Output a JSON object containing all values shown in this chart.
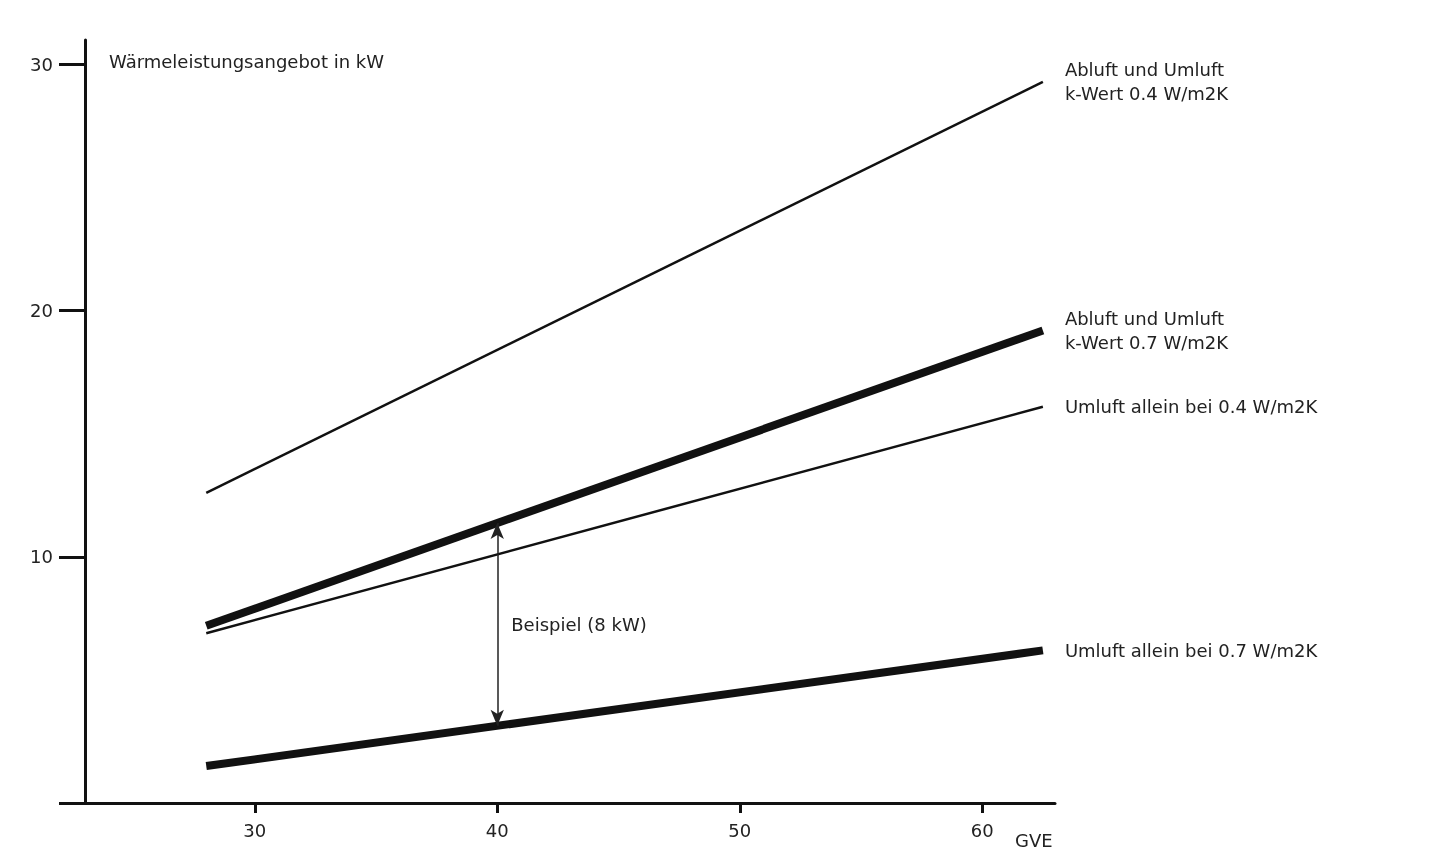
{
  "chart_data": {
    "type": "line",
    "ylabel": "Wärmeleistungsangebot in kW",
    "xlabel": "GVE",
    "x": [
      28,
      62.5
    ],
    "series": [
      {
        "name": "Abluft und Umluft\nk-Wert 0.4 W/m2K",
        "color": "#111111",
        "values": [
          12.6,
          29.3
        ]
      },
      {
        "name": "Abluft und Umluft\nk-Wert 0.7 W/m2K",
        "color": "#111111",
        "values": [
          7.2,
          19.2
        ]
      },
      {
        "name": "Umluft allein bei 0.4 W/m2K",
        "color": "#111111",
        "values": [
          6.9,
          16.1
        ]
      },
      {
        "name": "Umluft allein bei 0.7 W/m2K",
        "color": "#111111",
        "values": [
          1.5,
          6.2
        ]
      }
    ],
    "annotations": [
      "Beispiel (8 kW)"
    ],
    "xlim": [
      23,
      63
    ],
    "xticks": [
      30,
      40,
      50,
      60
    ],
    "ylim": [
      0,
      31
    ],
    "yticks": [
      {
        "value": 0,
        "label": null
      },
      10,
      20,
      30
    ],
    "grid": false,
    "legend": false,
    "marker": "none",
    "line_style": "solid"
  }
}
